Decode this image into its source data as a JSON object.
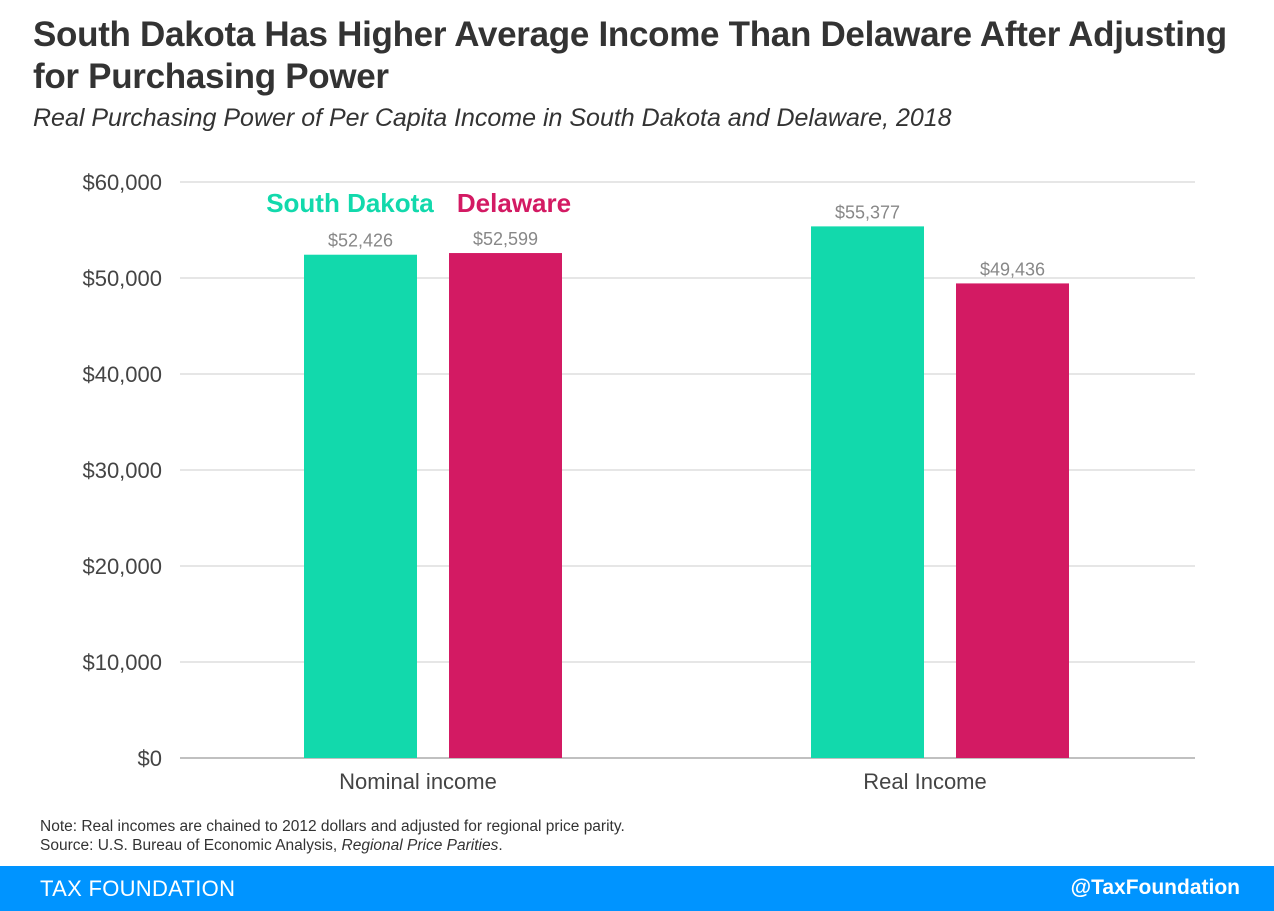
{
  "header": {
    "title": "South Dakota Has Higher Average Income Than Delaware After Adjusting for Purchasing Power",
    "subtitle": "Real Purchasing Power of Per Capita Income in South Dakota and Delaware, 2018"
  },
  "chart_data": {
    "type": "bar",
    "categories": [
      "Nominal income",
      "Real Income"
    ],
    "series": [
      {
        "name": "South Dakota",
        "color": "#12d9ac",
        "values": [
          52426,
          55377
        ],
        "labels": [
          "$52,426",
          "$55,377"
        ]
      },
      {
        "name": "Delaware",
        "color": "#d31a63",
        "values": [
          52599,
          49436
        ],
        "labels": [
          "$52,599",
          "$49,436"
        ]
      }
    ],
    "ylim": [
      0,
      60000
    ],
    "yticks": [
      0,
      10000,
      20000,
      30000,
      40000,
      50000,
      60000
    ],
    "ytick_labels": [
      "$0",
      "$10,000",
      "$20,000",
      "$30,000",
      "$40,000",
      "$50,000",
      "$60,000"
    ],
    "grid": true,
    "legend": "top-left"
  },
  "notes": {
    "note": "Note: Real incomes are chained to 2012 dollars and adjusted for regional price parity.",
    "source_prefix": "Source: U.S. Bureau of Economic Analysis, ",
    "source_title": "Regional Price Parities",
    "source_suffix": "."
  },
  "footer": {
    "brand": "TAX FOUNDATION",
    "handle": "@TaxFoundation"
  }
}
